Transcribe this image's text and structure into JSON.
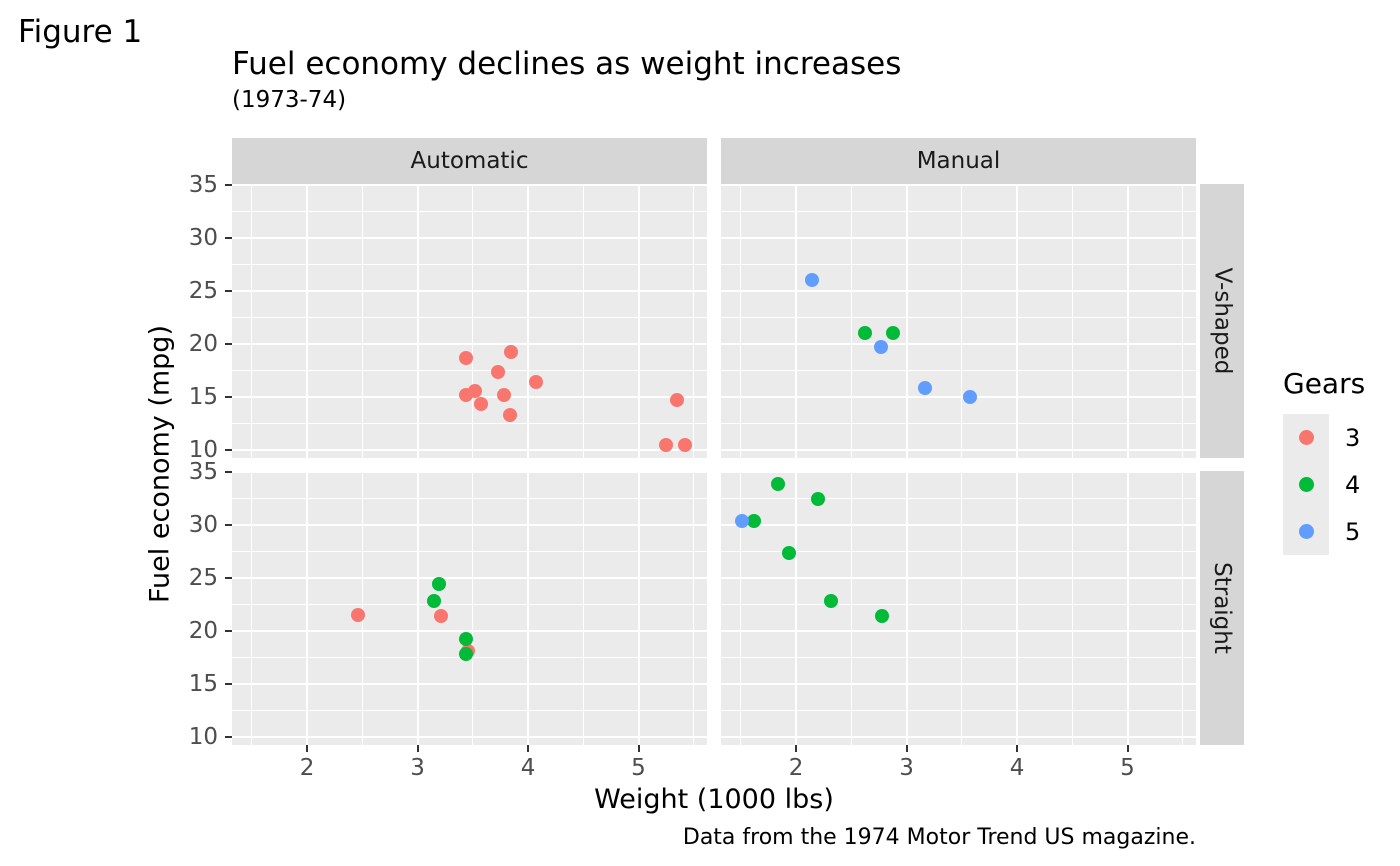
{
  "figure_label": "Figure 1",
  "chart_data": {
    "type": "scatter",
    "title": "Fuel economy declines as weight increases",
    "subtitle": "(1973-74)",
    "caption": "Data from the 1974 Motor Trend US magazine.",
    "xlabel": "Weight (1000 lbs)",
    "ylabel": "Fuel economy (mpg)",
    "facet_cols": [
      "Automatic",
      "Manual"
    ],
    "facet_rows": [
      "V-shaped",
      "Straight"
    ],
    "x_ticks": [
      2,
      3,
      4,
      5
    ],
    "y_ticks": [
      35,
      30,
      25,
      20,
      15,
      10
    ],
    "x_domain": [
      1.32,
      5.62
    ],
    "y_domain": [
      9.22,
      35.08
    ],
    "grid": true,
    "legend": {
      "title": "Gears",
      "position": "right",
      "entries": [
        {
          "label": "3",
          "color": "#F8766D"
        },
        {
          "label": "4",
          "color": "#00BA38"
        },
        {
          "label": "5",
          "color": "#619CFF"
        }
      ]
    },
    "colors": {
      "panel_bg": "#EBEBEB",
      "strip_bg": "#D6D6D6",
      "gridline": "#FFFFFF",
      "tick_text": "#4D4D4D",
      "tick_mark": "#333333"
    },
    "points": [
      {
        "wt": 2.62,
        "mpg": 21.0,
        "gear": "3-4-5-map:4",
        "g": "4",
        "transmission": "Manual",
        "engine": "V-shaped"
      },
      {
        "wt": 2.875,
        "mpg": 21.0,
        "gear": "4",
        "g": "4",
        "transmission": "Manual",
        "engine": "V-shaped"
      },
      {
        "wt": 2.32,
        "mpg": 22.8,
        "gear": "4",
        "g": "4",
        "transmission": "Manual",
        "engine": "Straight"
      },
      {
        "wt": 3.215,
        "mpg": 21.4,
        "gear": "3",
        "g": "3",
        "transmission": "Automatic",
        "engine": "Straight"
      },
      {
        "wt": 3.44,
        "mpg": 18.7,
        "gear": "3",
        "g": "3",
        "transmission": "Automatic",
        "engine": "V-shaped"
      },
      {
        "wt": 3.46,
        "mpg": 18.1,
        "gear": "3",
        "g": "3",
        "transmission": "Automatic",
        "engine": "Straight"
      },
      {
        "wt": 3.57,
        "mpg": 14.3,
        "gear": "3",
        "g": "3",
        "transmission": "Automatic",
        "engine": "V-shaped"
      },
      {
        "wt": 3.19,
        "mpg": 24.4,
        "gear": "4",
        "g": "4",
        "transmission": "Automatic",
        "engine": "Straight"
      },
      {
        "wt": 3.15,
        "mpg": 22.8,
        "gear": "4",
        "g": "4",
        "transmission": "Automatic",
        "engine": "Straight"
      },
      {
        "wt": 3.44,
        "mpg": 19.2,
        "gear": "4",
        "g": "4",
        "transmission": "Automatic",
        "engine": "Straight"
      },
      {
        "wt": 3.44,
        "mpg": 17.8,
        "gear": "4",
        "g": "4",
        "transmission": "Automatic",
        "engine": "Straight"
      },
      {
        "wt": 4.07,
        "mpg": 16.4,
        "gear": "3",
        "g": "3",
        "transmission": "Automatic",
        "engine": "V-shaped"
      },
      {
        "wt": 3.73,
        "mpg": 17.3,
        "gear": "3",
        "g": "3",
        "transmission": "Automatic",
        "engine": "V-shaped"
      },
      {
        "wt": 3.78,
        "mpg": 15.2,
        "gear": "3",
        "g": "3",
        "transmission": "Automatic",
        "engine": "V-shaped"
      },
      {
        "wt": 5.25,
        "mpg": 10.4,
        "gear": "3",
        "g": "3",
        "transmission": "Automatic",
        "engine": "V-shaped"
      },
      {
        "wt": 5.424,
        "mpg": 10.4,
        "gear": "3",
        "g": "3",
        "transmission": "Automatic",
        "engine": "V-shaped"
      },
      {
        "wt": 5.345,
        "mpg": 14.7,
        "gear": "3",
        "g": "3",
        "transmission": "Automatic",
        "engine": "V-shaped"
      },
      {
        "wt": 2.2,
        "mpg": 32.4,
        "gear": "4",
        "g": "4",
        "transmission": "Manual",
        "engine": "Straight"
      },
      {
        "wt": 1.615,
        "mpg": 30.4,
        "gear": "4",
        "g": "4",
        "transmission": "Manual",
        "engine": "Straight"
      },
      {
        "wt": 1.835,
        "mpg": 33.9,
        "gear": "4",
        "g": "4",
        "transmission": "Manual",
        "engine": "Straight"
      },
      {
        "wt": 2.465,
        "mpg": 21.5,
        "gear": "3",
        "g": "3",
        "transmission": "Automatic",
        "engine": "Straight"
      },
      {
        "wt": 3.52,
        "mpg": 15.5,
        "gear": "3",
        "g": "3",
        "transmission": "Automatic",
        "engine": "V-shaped"
      },
      {
        "wt": 3.435,
        "mpg": 15.2,
        "gear": "3",
        "g": "3",
        "transmission": "Automatic",
        "engine": "V-shaped"
      },
      {
        "wt": 3.84,
        "mpg": 13.3,
        "gear": "3",
        "g": "3",
        "transmission": "Automatic",
        "engine": "V-shaped"
      },
      {
        "wt": 3.845,
        "mpg": 19.2,
        "gear": "3",
        "g": "3",
        "transmission": "Automatic",
        "engine": "V-shaped"
      },
      {
        "wt": 1.935,
        "mpg": 27.3,
        "gear": "4",
        "g": "4",
        "transmission": "Manual",
        "engine": "Straight"
      },
      {
        "wt": 2.14,
        "mpg": 26.0,
        "gear": "5",
        "g": "5",
        "transmission": "Manual",
        "engine": "V-shaped"
      },
      {
        "wt": 1.513,
        "mpg": 30.4,
        "gear": "5",
        "g": "5",
        "transmission": "Manual",
        "engine": "Straight"
      },
      {
        "wt": 3.17,
        "mpg": 15.8,
        "gear": "5",
        "g": "5",
        "transmission": "Manual",
        "engine": "V-shaped"
      },
      {
        "wt": 2.77,
        "mpg": 19.7,
        "gear": "5",
        "g": "5",
        "transmission": "Manual",
        "engine": "V-shaped"
      },
      {
        "wt": 3.57,
        "mpg": 15.0,
        "gear": "5",
        "g": "5",
        "transmission": "Manual",
        "engine": "V-shaped"
      },
      {
        "wt": 2.78,
        "mpg": 21.4,
        "gear": "4",
        "g": "4",
        "transmission": "Manual",
        "engine": "Straight"
      }
    ]
  }
}
